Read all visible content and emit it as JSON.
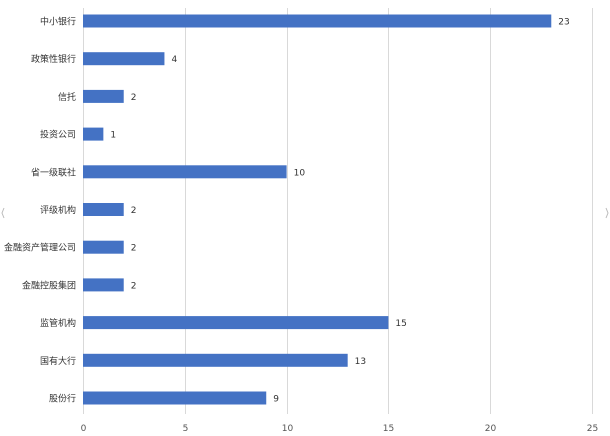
{
  "chart_data": {
    "type": "bar",
    "orientation": "horizontal",
    "categories": [
      "中小银行",
      "政策性银行",
      "信托",
      "投资公司",
      "省一级联社",
      "评级机构",
      "金融资产管理公司",
      "金融控股集团",
      "监管机构",
      "国有大行",
      "股份行"
    ],
    "values": [
      23,
      4,
      2,
      1,
      10,
      2,
      2,
      2,
      15,
      13,
      9
    ],
    "value_labels": [
      "23",
      "4",
      "2",
      "1",
      "10",
      "2",
      "2",
      "2",
      "15",
      "13",
      "9"
    ],
    "xlim": [
      0,
      25
    ],
    "x_ticks": [
      0,
      5,
      10,
      15,
      20,
      25
    ],
    "x_tick_labels": [
      "0",
      "5",
      "10",
      "15",
      "20",
      "25"
    ],
    "grid": "vertical",
    "legend": "none",
    "title": "",
    "xlabel": "",
    "ylabel": "",
    "bar_color": "#4472c4"
  }
}
